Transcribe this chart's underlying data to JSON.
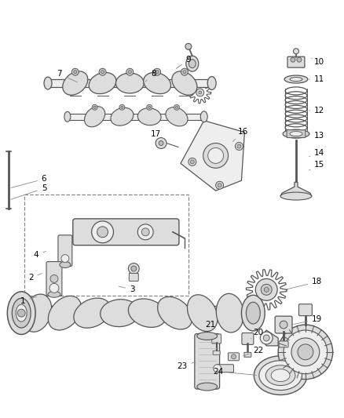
{
  "bg_color": "#ffffff",
  "line_color": "#555555",
  "label_color": "#000000",
  "label_fontsize": 7.5,
  "leader_line_color": "#888888",
  "figsize": [
    4.38,
    5.33
  ],
  "dpi": 100
}
